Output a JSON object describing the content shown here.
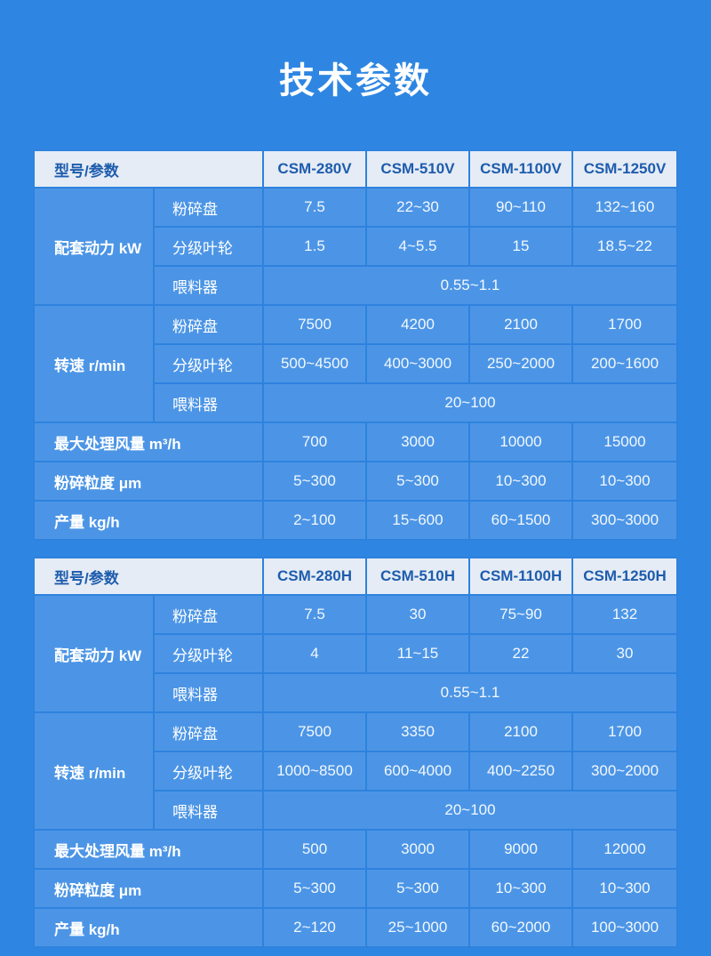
{
  "title": "技术参数",
  "colors": {
    "page_bg": "#2e86e2",
    "cell_bg": "#4c95e6",
    "header_bg": "#e5ecf5",
    "header_text": "#1e5cad",
    "body_text": "#ffffff"
  },
  "tables": [
    {
      "header": {
        "param_label": "型号/参数",
        "models": [
          "CSM-280V",
          "CSM-510V",
          "CSM-1100V",
          "CSM-1250V"
        ]
      },
      "power_group": {
        "label": "配套动力 kW",
        "rows": [
          {
            "sub_label": "粉碎盘",
            "values": [
              "7.5",
              "22~30",
              "90~110",
              "132~160"
            ]
          },
          {
            "sub_label": "分级叶轮",
            "values": [
              "1.5",
              "4~5.5",
              "15",
              "18.5~22"
            ]
          },
          {
            "sub_label": "喂料器",
            "merged_value": "0.55~1.1"
          }
        ]
      },
      "speed_group": {
        "label": "转速 r/min",
        "rows": [
          {
            "sub_label": "粉碎盘",
            "values": [
              "7500",
              "4200",
              "2100",
              "1700"
            ]
          },
          {
            "sub_label": "分级叶轮",
            "values": [
              "500~4500",
              "400~3000",
              "250~2000",
              "200~1600"
            ]
          },
          {
            "sub_label": "喂料器",
            "merged_value": "20~100"
          }
        ]
      },
      "flat_rows": [
        {
          "label": "最大处理风量 m³/h",
          "values": [
            "700",
            "3000",
            "10000",
            "15000"
          ]
        },
        {
          "label": "粉碎粒度 μm",
          "values": [
            "5~300",
            "5~300",
            "10~300",
            "10~300"
          ]
        },
        {
          "label": "产量 kg/h",
          "values": [
            "2~100",
            "15~600",
            "60~1500",
            "300~3000"
          ]
        }
      ]
    },
    {
      "header": {
        "param_label": "型号/参数",
        "models": [
          "CSM-280H",
          "CSM-510H",
          "CSM-1100H",
          "CSM-1250H"
        ]
      },
      "power_group": {
        "label": "配套动力 kW",
        "rows": [
          {
            "sub_label": "粉碎盘",
            "values": [
              "7.5",
              "30",
              "75~90",
              "132"
            ]
          },
          {
            "sub_label": "分级叶轮",
            "values": [
              "4",
              "11~15",
              "22",
              "30"
            ]
          },
          {
            "sub_label": "喂料器",
            "merged_value": "0.55~1.1"
          }
        ]
      },
      "speed_group": {
        "label": "转速 r/min",
        "rows": [
          {
            "sub_label": "粉碎盘",
            "values": [
              "7500",
              "3350",
              "2100",
              "1700"
            ]
          },
          {
            "sub_label": "分级叶轮",
            "values": [
              "1000~8500",
              "600~4000",
              "400~2250",
              "300~2000"
            ]
          },
          {
            "sub_label": "喂料器",
            "merged_value": "20~100"
          }
        ]
      },
      "flat_rows": [
        {
          "label": "最大处理风量 m³/h",
          "values": [
            "500",
            "3000",
            "9000",
            "12000"
          ]
        },
        {
          "label": "粉碎粒度 μm",
          "values": [
            "5~300",
            "5~300",
            "10~300",
            "10~300"
          ]
        },
        {
          "label": "产量 kg/h",
          "values": [
            "2~120",
            "25~1000",
            "60~2000",
            "100~3000"
          ]
        }
      ]
    }
  ]
}
